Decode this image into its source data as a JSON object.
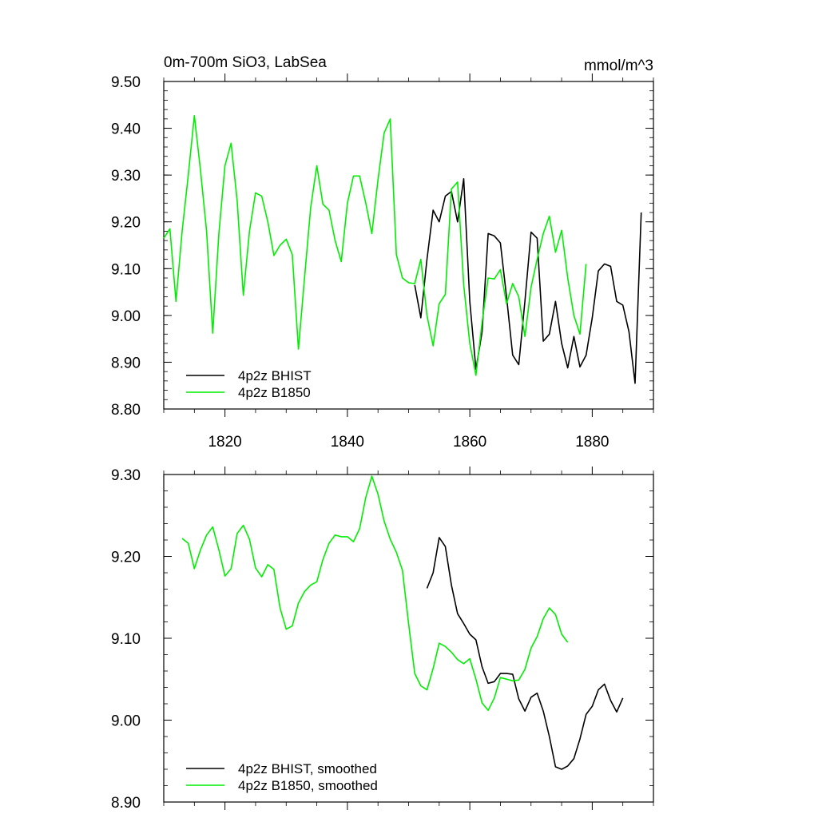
{
  "chart_data": [
    {
      "type": "line",
      "title": "0m-700m SiO3, LabSea",
      "units": "mmol/m^3",
      "xlim": [
        1810,
        1890
      ],
      "ylim": [
        8.8,
        9.5
      ],
      "x_ticks": [
        1820,
        1840,
        1860,
        1880
      ],
      "x_tick_labels": [
        "1820",
        "1840",
        "1860",
        "1880"
      ],
      "y_ticks": [
        8.8,
        8.9,
        9.0,
        9.1,
        9.2,
        9.3,
        9.4,
        9.5
      ],
      "y_tick_labels": [
        "8.80",
        "8.90",
        "9.00",
        "9.10",
        "9.20",
        "9.30",
        "9.40",
        "9.50"
      ],
      "grid": false,
      "legend_position": "bottom-left",
      "series": [
        {
          "name": "4p2z BHIST",
          "color": "#000000",
          "x": [
            1851,
            1852,
            1853,
            1854,
            1855,
            1856,
            1857,
            1858,
            1859,
            1860,
            1861,
            1862,
            1863,
            1864,
            1865,
            1866,
            1867,
            1868,
            1869,
            1870,
            1871,
            1872,
            1873,
            1874,
            1875,
            1876,
            1877,
            1878,
            1879,
            1880,
            1881,
            1882,
            1883,
            1884,
            1885,
            1886,
            1887,
            1888
          ],
          "values": [
            9.065,
            8.995,
            9.12,
            9.225,
            9.2,
            9.255,
            9.265,
            9.2,
            9.292,
            9.03,
            8.885,
            8.965,
            9.175,
            9.17,
            9.155,
            9.04,
            8.915,
            8.895,
            9.03,
            9.178,
            9.165,
            8.945,
            8.96,
            9.03,
            8.94,
            8.888,
            8.955,
            8.89,
            8.915,
            8.995,
            9.095,
            9.11,
            9.105,
            9.03,
            9.022,
            8.965,
            8.855,
            9.22
          ]
        },
        {
          "name": "4p2z B1850",
          "color": "#00ee00",
          "x": [
            1810,
            1811,
            1812,
            1813,
            1814,
            1815,
            1816,
            1817,
            1818,
            1819,
            1820,
            1821,
            1822,
            1823,
            1824,
            1825,
            1826,
            1827,
            1828,
            1829,
            1830,
            1831,
            1832,
            1833,
            1834,
            1835,
            1836,
            1837,
            1838,
            1839,
            1840,
            1841,
            1842,
            1843,
            1844,
            1845,
            1846,
            1847,
            1848,
            1849,
            1850,
            1851,
            1852,
            1853,
            1854,
            1855,
            1856,
            1857,
            1858,
            1859,
            1860,
            1861,
            1862,
            1863,
            1864,
            1865,
            1866,
            1867,
            1868,
            1869,
            1870,
            1871,
            1872,
            1873,
            1874,
            1875,
            1876,
            1877,
            1878,
            1879
          ],
          "values": [
            9.165,
            9.185,
            9.03,
            9.18,
            9.3,
            9.427,
            9.31,
            9.18,
            8.962,
            9.175,
            9.32,
            9.368,
            9.245,
            9.043,
            9.18,
            9.262,
            9.255,
            9.2,
            9.128,
            9.15,
            9.163,
            9.13,
            8.928,
            9.08,
            9.23,
            9.32,
            9.238,
            9.225,
            9.16,
            9.115,
            9.24,
            9.298,
            9.298,
            9.24,
            9.175,
            9.29,
            9.39,
            9.42,
            9.13,
            9.08,
            9.07,
            9.068,
            9.12,
            9.0,
            8.935,
            9.025,
            9.045,
            9.27,
            9.285,
            9.065,
            8.94,
            8.872,
            8.985,
            9.08,
            9.078,
            9.098,
            9.025,
            9.068,
            9.04,
            8.955,
            9.06,
            9.12,
            9.175,
            9.212,
            9.135,
            9.182,
            9.08,
            9.0,
            8.96,
            9.11
          ]
        }
      ]
    },
    {
      "type": "line",
      "title": "",
      "xlim": [
        1810,
        1890
      ],
      "ylim": [
        8.9,
        9.3
      ],
      "x_ticks": [
        1820,
        1840,
        1860,
        1880
      ],
      "x_tick_labels": [],
      "y_ticks": [
        8.9,
        9.0,
        9.1,
        9.2,
        9.3
      ],
      "y_tick_labels": [
        "8.90",
        "9.00",
        "9.10",
        "9.20",
        "9.30"
      ],
      "grid": false,
      "legend_position": "bottom-left",
      "series": [
        {
          "name": "4p2z BHIST, smoothed",
          "color": "#000000",
          "x": [
            1853,
            1854,
            1855,
            1856,
            1857,
            1858,
            1859,
            1860,
            1861,
            1862,
            1863,
            1864,
            1865,
            1866,
            1867,
            1868,
            1869,
            1870,
            1871,
            1872,
            1873,
            1874,
            1875,
            1876,
            1877,
            1878,
            1879,
            1880,
            1881,
            1882,
            1883,
            1884,
            1885
          ],
          "values": [
            9.161,
            9.18,
            9.223,
            9.212,
            9.165,
            9.13,
            9.118,
            9.105,
            9.098,
            9.065,
            9.045,
            9.047,
            9.057,
            9.057,
            9.056,
            9.026,
            9.011,
            9.028,
            9.033,
            9.011,
            8.98,
            8.943,
            8.94,
            8.944,
            8.953,
            8.977,
            9.007,
            9.017,
            9.037,
            9.044,
            9.024,
            9.01,
            9.027
          ]
        },
        {
          "name": "4p2z B1850, smoothed",
          "color": "#00ee00",
          "x": [
            1813,
            1814,
            1815,
            1816,
            1817,
            1818,
            1819,
            1820,
            1821,
            1822,
            1823,
            1824,
            1825,
            1826,
            1827,
            1828,
            1829,
            1830,
            1831,
            1832,
            1833,
            1834,
            1835,
            1836,
            1837,
            1838,
            1839,
            1840,
            1841,
            1842,
            1843,
            1844,
            1845,
            1846,
            1847,
            1848,
            1849,
            1850,
            1851,
            1852,
            1853,
            1854,
            1855,
            1856,
            1857,
            1858,
            1859,
            1860,
            1861,
            1862,
            1863,
            1864,
            1865,
            1866,
            1867,
            1868,
            1869,
            1870,
            1871,
            1872,
            1873,
            1874,
            1875,
            1876
          ],
          "values": [
            9.222,
            9.216,
            9.185,
            9.208,
            9.226,
            9.236,
            9.208,
            9.176,
            9.185,
            9.228,
            9.238,
            9.221,
            9.186,
            9.175,
            9.19,
            9.184,
            9.137,
            9.111,
            9.115,
            9.143,
            9.157,
            9.165,
            9.169,
            9.196,
            9.216,
            9.226,
            9.224,
            9.224,
            9.218,
            9.234,
            9.272,
            9.298,
            9.276,
            9.243,
            9.221,
            9.205,
            9.183,
            9.118,
            9.057,
            9.042,
            9.037,
            9.063,
            9.094,
            9.09,
            9.083,
            9.074,
            9.069,
            9.075,
            9.05,
            9.021,
            9.012,
            9.027,
            9.052,
            9.05,
            9.048,
            9.049,
            9.062,
            9.088,
            9.102,
            9.124,
            9.137,
            9.129,
            9.105,
            9.095
          ]
        }
      ]
    }
  ]
}
